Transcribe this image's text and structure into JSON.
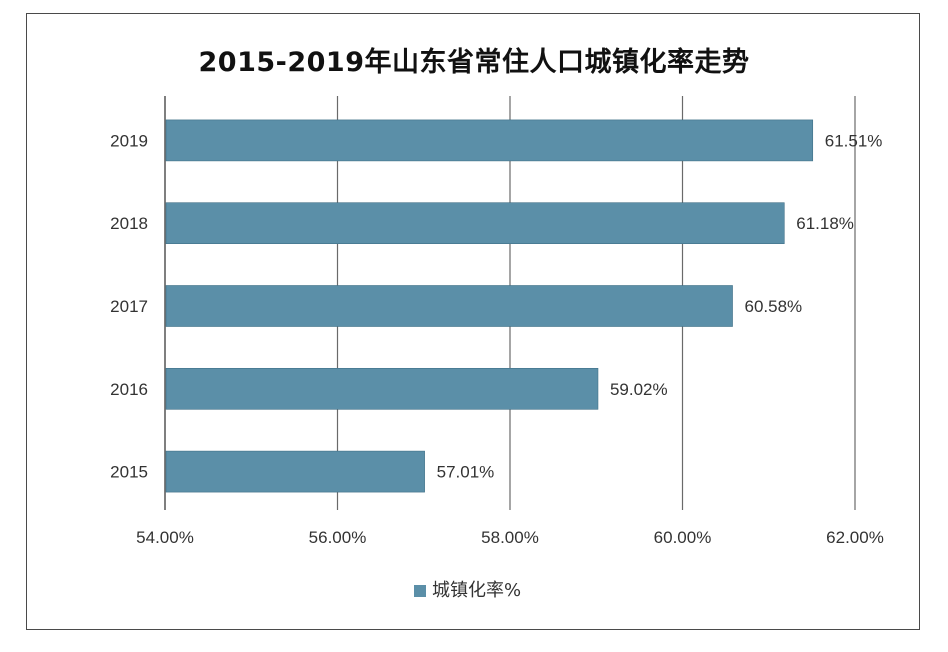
{
  "chart_data": {
    "type": "bar",
    "orientation": "horizontal",
    "title": "2015-2019年山东省常住人口城镇化率走势",
    "categories": [
      "2019",
      "2018",
      "2017",
      "2016",
      "2015"
    ],
    "series": [
      {
        "name": "城镇化率%",
        "values": [
          61.51,
          61.18,
          60.58,
          59.02,
          57.01
        ],
        "labels": [
          "61.51%",
          "61.18%",
          "60.58%",
          "59.02%",
          "57.01%"
        ]
      }
    ],
    "xlim": [
      54,
      62
    ],
    "xticks": [
      54,
      56,
      58,
      60,
      62
    ],
    "xtick_labels": [
      "54.00%",
      "56.00%",
      "58.00%",
      "60.00%",
      "62.00%"
    ],
    "xlabel": "",
    "ylabel": "",
    "grid": "vertical",
    "legend": "bottom",
    "colors": {
      "bar": "#5b8fa8",
      "grid": "#555555",
      "frame": "#4a4a4a",
      "text": "#333333"
    }
  }
}
